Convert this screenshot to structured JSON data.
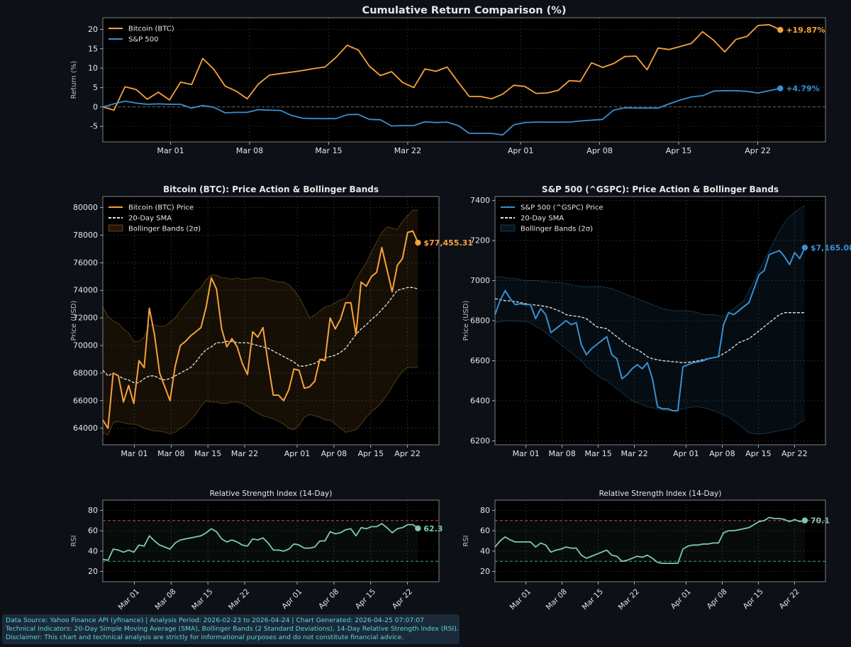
{
  "colors": {
    "background": "#0d1117",
    "panel": "#000000",
    "btc": "#f7a23b",
    "spx": "#3a8fd0",
    "rsi": "#7fc7b5",
    "overbought": "#c0504d",
    "oversold": "#33b08a",
    "sma": "#e6e6e6",
    "footer_text": "#5fd3e0"
  },
  "footer": {
    "line1": "Data Source: Yahoo Finance API (yfinance) | Analysis Period: 2026-02-23 to 2026-04-24 | Chart Generated: 2026-04-25 07:07:07",
    "line2": "Technical Indicators: 20-Day Simple Moving Average (SMA), Bollinger Bands (2 Standard Deviations), 14-Day Relative Strength Index (RSI).",
    "line3": "Disclaimer: This chart and technical analysis are strictly for informational purposes and do not constitute financial advice."
  },
  "chart_data": [
    {
      "id": "cumret",
      "type": "line",
      "title": "Cumulative Return Comparison (%)",
      "ylabel": "Return (%)",
      "x_start": "2026-02-23",
      "x_end": "2026-04-24",
      "xlim": [
        "2026-02-23",
        "2026-04-28"
      ],
      "ylim": [
        -9,
        23
      ],
      "yticks": [
        -5,
        0,
        5,
        10,
        15,
        20
      ],
      "xticks": [
        "Mar 01",
        "Mar 08",
        "Mar 15",
        "Mar 22",
        "Apr 01",
        "Apr 08",
        "Apr 15",
        "Apr 22"
      ],
      "xtick_dates": [
        "2026-03-01",
        "2026-03-08",
        "2026-03-15",
        "2026-03-22",
        "2026-04-01",
        "2026-04-08",
        "2026-04-15",
        "2026-04-22"
      ],
      "zero_line": true,
      "grid": true,
      "legend": "top-left",
      "series": [
        {
          "name": "Bitcoin (BTC)",
          "color_key": "btc",
          "end_label": "+19.87%",
          "values": [
            0,
            -0.8,
            5.2,
            4.5,
            2.0,
            3.8,
            1.8,
            6.4,
            5.8,
            12.5,
            9.7,
            5.4,
            4.1,
            2.1,
            5.9,
            8.2,
            8.6,
            9.0,
            9.4,
            9.9,
            10.3,
            12.8,
            15.9,
            14.7,
            10.5,
            8.1,
            9.1,
            6.3,
            5.0,
            9.8,
            9.2,
            10.3,
            6.4,
            2.7,
            2.7,
            2.1,
            3.3,
            5.6,
            5.3,
            3.5,
            3.6,
            4.3,
            6.8,
            6.6,
            11.4,
            10.2,
            11.2,
            13.0,
            13.1,
            9.6,
            15.2,
            14.8,
            15.6,
            16.4,
            19.4,
            17.2,
            14.2,
            17.4,
            18.2,
            21.0,
            21.2,
            19.87
          ]
        },
        {
          "name": "S&P 500",
          "color_key": "spx",
          "end_label": "+4.79%",
          "values": [
            0,
            0.8,
            1.5,
            1.0,
            0.7,
            0.8,
            0.7,
            0.7,
            -0.3,
            0.4,
            -0.1,
            -1.5,
            -1.4,
            -1.4,
            -0.7,
            -0.8,
            -0.9,
            -2.2,
            -2.9,
            -3.0,
            -3.0,
            -3.0,
            -2.0,
            -1.9,
            -3.2,
            -3.3,
            -4.9,
            -4.8,
            -4.8,
            -3.8,
            -4.0,
            -3.9,
            -4.8,
            -6.8,
            -6.8,
            -6.8,
            -7.2,
            -4.6,
            -4.0,
            -3.9,
            -3.9,
            -3.9,
            -3.9,
            -3.6,
            -3.4,
            -3.2,
            -0.8,
            -0.2,
            -0.3,
            -0.3,
            -0.3,
            0.8,
            1.8,
            2.6,
            2.9,
            4.1,
            4.2,
            4.2,
            4.0,
            3.6,
            4.2,
            4.79
          ]
        }
      ]
    },
    {
      "id": "btcprice",
      "type": "line",
      "title": "Bitcoin (BTC): Price Action & Bollinger Bands",
      "ylabel": "Price (USD)",
      "x_start": "2026-02-23",
      "x_end": "2026-04-24",
      "xlim": [
        "2026-02-23",
        "2026-04-28"
      ],
      "ylim": [
        62800,
        80800
      ],
      "yticks": [
        64000,
        66000,
        68000,
        70000,
        72000,
        74000,
        76000,
        78000,
        80000
      ],
      "xticks": [
        "Mar 01",
        "Mar 08",
        "Mar 15",
        "Mar 22",
        "Apr 01",
        "Apr 08",
        "Apr 15",
        "Apr 22"
      ],
      "xtick_dates": [
        "2026-03-01",
        "2026-03-08",
        "2026-03-15",
        "2026-03-22",
        "2026-04-01",
        "2026-04-08",
        "2026-04-15",
        "2026-04-22"
      ],
      "grid": true,
      "legend": "top-left",
      "legend_entries": [
        "Bitcoin (BTC) Price",
        "20-Day SMA",
        "Bollinger Bands (2σ)"
      ],
      "end_label": "$77,455.31",
      "price": [
        64600,
        64000,
        68000,
        67800,
        65900,
        67100,
        65800,
        68900,
        68400,
        72700,
        70800,
        68000,
        67000,
        66000,
        68500,
        70000,
        70300,
        70700,
        71000,
        71300,
        72800,
        74900,
        74100,
        71200,
        69900,
        70500,
        69900,
        68700,
        67900,
        71000,
        70600,
        71300,
        68700,
        66400,
        66400,
        66000,
        66800,
        68300,
        68200,
        66900,
        67000,
        67400,
        69000,
        68900,
        72000,
        71200,
        71900,
        73100,
        73100,
        70800,
        74600,
        74300,
        75000,
        75300,
        77100,
        75500,
        73900,
        75800,
        76300,
        78200,
        78300,
        77455.31
      ],
      "sma": [
        68200,
        67800,
        68000,
        67800,
        67600,
        67500,
        67300,
        67300,
        67600,
        67800,
        67800,
        67600,
        67500,
        67600,
        67800,
        68000,
        68200,
        68400,
        68800,
        69300,
        69700,
        69900,
        70200,
        70200,
        70300,
        70300,
        70200,
        70200,
        70200,
        70100,
        70000,
        69900,
        69800,
        69600,
        69400,
        69200,
        69000,
        68800,
        68500,
        68500,
        68600,
        68700,
        68900,
        69100,
        69200,
        69300,
        69500,
        69800,
        70300,
        70800,
        71200,
        71500,
        71900,
        72200,
        72600,
        73000,
        73500,
        74000,
        74100,
        74200,
        74200,
        74100
      ],
      "upper": [
        72800,
        72100,
        71800,
        71600,
        71200,
        70900,
        70300,
        70300,
        70600,
        71500,
        71500,
        71400,
        71400,
        71700,
        72000,
        72500,
        73000,
        73400,
        73900,
        74200,
        74800,
        75100,
        75100,
        74900,
        74900,
        74800,
        74900,
        74800,
        74800,
        74900,
        74900,
        74900,
        74800,
        74700,
        74600,
        74600,
        74400,
        74000,
        73500,
        72800,
        72000,
        72200,
        72500,
        72800,
        72900,
        73100,
        73300,
        73400,
        74000,
        74800,
        75400,
        76000,
        76800,
        77500,
        78200,
        78600,
        78500,
        78400,
        79000,
        79400,
        79800,
        79800
      ],
      "lower": [
        63700,
        63500,
        64400,
        64500,
        64400,
        64300,
        64300,
        64200,
        64000,
        63900,
        63800,
        63800,
        63700,
        63600,
        63700,
        64000,
        64200,
        64600,
        65000,
        65600,
        66000,
        65900,
        65900,
        65800,
        65800,
        65900,
        65900,
        65800,
        65600,
        65300,
        65100,
        64900,
        64800,
        64700,
        64500,
        64300,
        64000,
        63900,
        64200,
        64800,
        65000,
        64900,
        64800,
        64600,
        64600,
        64300,
        64000,
        63700,
        63800,
        63900,
        64300,
        64800,
        65200,
        65500,
        65900,
        66400,
        67000,
        67600,
        68100,
        68400,
        68400,
        68400
      ]
    },
    {
      "id": "spxprice",
      "type": "line",
      "title": "S&P 500 (^GSPC): Price Action & Bollinger Bands",
      "ylabel": "Price (USD)",
      "x_start": "2026-02-23",
      "x_end": "2026-04-24",
      "xlim": [
        "2026-02-23",
        "2026-04-28"
      ],
      "ylim": [
        6180,
        7420
      ],
      "yticks": [
        6200,
        6400,
        6600,
        6800,
        7000,
        7200,
        7400
      ],
      "xticks": [
        "Mar 01",
        "Mar 08",
        "Mar 15",
        "Mar 22",
        "Apr 01",
        "Apr 08",
        "Apr 15",
        "Apr 22"
      ],
      "xtick_dates": [
        "2026-03-01",
        "2026-03-08",
        "2026-03-15",
        "2026-03-22",
        "2026-04-01",
        "2026-04-08",
        "2026-04-15",
        "2026-04-22"
      ],
      "grid": true,
      "legend": "top-left",
      "legend_entries": [
        "S&P 500 (^GSPC) Price",
        "20-Day SMA",
        "Bollinger Bands (2σ)"
      ],
      "end_label": "$7,165.08",
      "price": [
        6830,
        6900,
        6950,
        6910,
        6880,
        6885,
        6880,
        6880,
        6810,
        6860,
        6830,
        6740,
        6760,
        6780,
        6800,
        6780,
        6790,
        6680,
        6630,
        6660,
        6680,
        6700,
        6720,
        6630,
        6610,
        6510,
        6530,
        6560,
        6580,
        6560,
        6590,
        6510,
        6370,
        6360,
        6360,
        6350,
        6350,
        6570,
        6580,
        6590,
        6595,
        6600,
        6610,
        6615,
        6620,
        6780,
        6840,
        6830,
        6850,
        6870,
        6890,
        6960,
        7030,
        7050,
        7130,
        7140,
        7150,
        7120,
        7080,
        7140,
        7110,
        7165.08
      ],
      "sma": [
        6910,
        6905,
        6900,
        6898,
        6896,
        6890,
        6885,
        6880,
        6878,
        6875,
        6870,
        6865,
        6855,
        6845,
        6830,
        6825,
        6822,
        6818,
        6810,
        6790,
        6770,
        6765,
        6760,
        6740,
        6720,
        6700,
        6680,
        6665,
        6655,
        6640,
        6620,
        6610,
        6605,
        6600,
        6598,
        6595,
        6593,
        6590,
        6592,
        6595,
        6600,
        6605,
        6610,
        6615,
        6620,
        6635,
        6650,
        6670,
        6690,
        6700,
        6710,
        6730,
        6750,
        6770,
        6790,
        6810,
        6830,
        6840,
        6840,
        6840,
        6840,
        6840
      ],
      "upper": [
        7020,
        7020,
        7015,
        7010,
        7010,
        7005,
        7000,
        7000,
        7000,
        6998,
        6995,
        6992,
        6990,
        6990,
        6985,
        6980,
        6975,
        6970,
        6970,
        6970,
        6970,
        6970,
        6965,
        6960,
        6950,
        6940,
        6930,
        6920,
        6910,
        6900,
        6890,
        6880,
        6870,
        6860,
        6855,
        6850,
        6850,
        6850,
        6850,
        6845,
        6840,
        6830,
        6830,
        6830,
        6825,
        6820,
        6840,
        6860,
        6880,
        6900,
        6950,
        7000,
        7050,
        7100,
        7150,
        7200,
        7250,
        7290,
        7320,
        7340,
        7360,
        7375
      ],
      "lower": [
        6790,
        6795,
        6800,
        6800,
        6798,
        6796,
        6795,
        6790,
        6770,
        6760,
        6740,
        6720,
        6700,
        6680,
        6660,
        6640,
        6620,
        6600,
        6570,
        6550,
        6530,
        6510,
        6500,
        6480,
        6460,
        6440,
        6420,
        6400,
        6390,
        6380,
        6370,
        6365,
        6360,
        6355,
        6350,
        6350,
        6355,
        6360,
        6365,
        6370,
        6370,
        6365,
        6360,
        6350,
        6340,
        6330,
        6320,
        6300,
        6280,
        6260,
        6240,
        6235,
        6235,
        6235,
        6240,
        6245,
        6250,
        6255,
        6260,
        6270,
        6290,
        6305
      ]
    },
    {
      "id": "btcrsi",
      "type": "line",
      "title": "Relative Strength Index (14-Day)",
      "ylabel": "RSI",
      "x_start": "2026-02-23",
      "x_end": "2026-04-24",
      "xlim": [
        "2026-02-23",
        "2026-04-28"
      ],
      "ylim": [
        10,
        90
      ],
      "yticks": [
        20,
        40,
        60,
        80
      ],
      "xticks": [
        "Mar 01",
        "Mar 08",
        "Mar 15",
        "Mar 22",
        "Apr 01",
        "Apr 08",
        "Apr 15",
        "Apr 22"
      ],
      "xtick_dates": [
        "2026-03-01",
        "2026-03-08",
        "2026-03-15",
        "2026-03-22",
        "2026-04-01",
        "2026-04-08",
        "2026-04-15",
        "2026-04-22"
      ],
      "overbought": 70,
      "oversold": 30,
      "end_label": "62.3",
      "values": [
        32,
        31,
        42,
        41,
        39,
        41,
        39,
        46,
        45,
        55,
        50,
        46,
        44,
        42,
        48,
        51,
        52,
        53,
        54,
        55,
        58,
        62,
        59,
        52,
        49,
        51,
        49,
        46,
        45,
        52,
        51,
        53,
        48,
        41,
        41,
        40,
        42,
        47,
        46,
        43,
        43,
        44,
        50,
        50,
        59,
        57,
        58,
        61,
        62,
        55,
        63,
        62,
        64,
        64,
        67,
        63,
        58,
        62,
        63,
        66,
        66,
        62.3
      ]
    },
    {
      "id": "spxrsi",
      "type": "line",
      "title": "Relative Strength Index (14-Day)",
      "ylabel": "RSI",
      "x_start": "2026-02-23",
      "x_end": "2026-04-24",
      "xlim": [
        "2026-02-23",
        "2026-04-28"
      ],
      "ylim": [
        10,
        90
      ],
      "yticks": [
        20,
        40,
        60,
        80
      ],
      "xticks": [
        "Mar 01",
        "Mar 08",
        "Mar 15",
        "Mar 22",
        "Apr 01",
        "Apr 08",
        "Apr 15",
        "Apr 22"
      ],
      "xtick_dates": [
        "2026-03-01",
        "2026-03-08",
        "2026-03-15",
        "2026-03-22",
        "2026-04-01",
        "2026-04-08",
        "2026-04-15",
        "2026-04-22"
      ],
      "overbought": 70,
      "oversold": 30,
      "end_label": "70.1",
      "values": [
        44,
        50,
        54,
        51,
        49,
        49,
        49,
        49,
        44,
        48,
        46,
        39,
        41,
        42,
        44,
        43,
        43,
        36,
        33,
        35,
        37,
        39,
        41,
        36,
        35,
        30,
        31,
        33,
        35,
        34,
        36,
        33,
        29,
        28,
        28,
        28,
        28,
        42,
        45,
        46,
        46,
        47,
        47,
        48,
        48,
        58,
        60,
        60,
        61,
        62,
        63,
        66,
        69,
        70,
        73,
        72,
        72,
        71,
        69,
        71,
        69,
        70.1
      ]
    }
  ]
}
